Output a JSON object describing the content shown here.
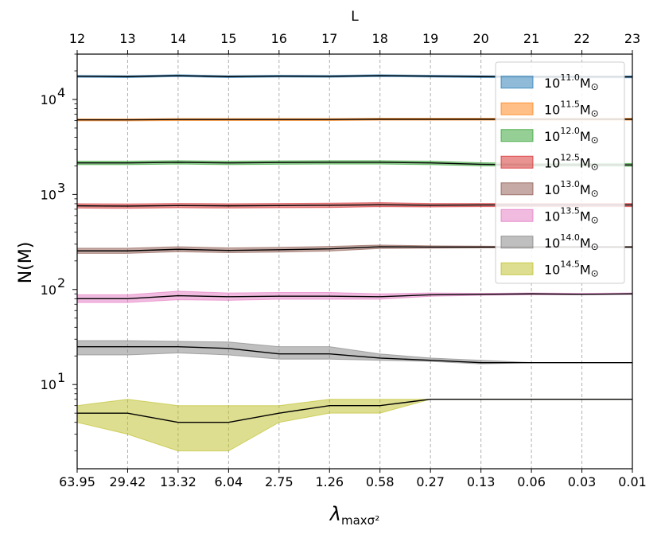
{
  "chart_data": {
    "type": "area",
    "x_bottom": {
      "label_main": "λ",
      "label_sub": "maxσ²",
      "ticks": [
        "63.95",
        "29.42",
        "13.32",
        "6.04",
        "2.75",
        "1.26",
        "0.58",
        "0.27",
        "0.13",
        "0.06",
        "0.03",
        "0.01"
      ]
    },
    "x_top": {
      "label": "L",
      "ticks": [
        "12",
        "13",
        "14",
        "15",
        "16",
        "17",
        "18",
        "19",
        "20",
        "21",
        "22",
        "23"
      ]
    },
    "y": {
      "label": "N(M)",
      "scale": "log",
      "ylim": [
        1.3,
        30000
      ],
      "tick_base": "10",
      "tick_exponents": [
        "1",
        "2",
        "3",
        "4"
      ]
    },
    "grid": {
      "vertical_dashed": true,
      "horizontal": false
    },
    "legend_position": "upper-right",
    "series": [
      {
        "name_base": "10",
        "name_exp": "11.0",
        "name_unit": "M",
        "name_sun": "⊙",
        "color": "#1f77b4",
        "median": [
          17500,
          17400,
          17800,
          17400,
          17600,
          17500,
          17800,
          17600,
          17400,
          17300,
          17300,
          17300
        ],
        "lower": [
          17100,
          17000,
          17400,
          17000,
          17200,
          17100,
          17400,
          17200,
          17000,
          16900,
          16900,
          16900
        ],
        "upper": [
          17900,
          17800,
          18200,
          17800,
          18000,
          17900,
          18200,
          18000,
          17800,
          17700,
          17700,
          17700
        ]
      },
      {
        "name_base": "10",
        "name_exp": "11.5",
        "name_unit": "M",
        "name_sun": "⊙",
        "color": "#ff7f0e",
        "median": [
          6100,
          6100,
          6150,
          6150,
          6150,
          6150,
          6200,
          6200,
          6200,
          6200,
          6200,
          6200
        ],
        "lower": [
          5950,
          5950,
          6000,
          6000,
          6000,
          6000,
          6050,
          6050,
          6050,
          6050,
          6050,
          6050
        ],
        "upper": [
          6250,
          6250,
          6300,
          6300,
          6300,
          6300,
          6350,
          6350,
          6350,
          6350,
          6350,
          6350
        ]
      },
      {
        "name_base": "10",
        "name_exp": "12.0",
        "name_unit": "M",
        "name_sun": "⊙",
        "color": "#2ca02c",
        "median": [
          2150,
          2150,
          2180,
          2150,
          2170,
          2180,
          2180,
          2150,
          2080,
          2050,
          2050,
          2050
        ],
        "lower": [
          2060,
          2060,
          2090,
          2060,
          2080,
          2090,
          2090,
          2060,
          2000,
          1980,
          1980,
          1980
        ],
        "upper": [
          2240,
          2240,
          2270,
          2240,
          2260,
          2270,
          2270,
          2240,
          2160,
          2120,
          2120,
          2120
        ]
      },
      {
        "name_base": "10",
        "name_exp": "12.5",
        "name_unit": "M",
        "name_sun": "⊙",
        "color": "#d62728",
        "median": [
          760,
          755,
          765,
          760,
          765,
          770,
          780,
          770,
          775,
          775,
          775,
          775
        ],
        "lower": [
          720,
          715,
          725,
          720,
          725,
          730,
          745,
          740,
          745,
          745,
          745,
          745
        ],
        "upper": [
          800,
          795,
          805,
          800,
          805,
          810,
          820,
          805,
          805,
          805,
          805,
          805
        ]
      },
      {
        "name_base": "10",
        "name_exp": "13.0",
        "name_unit": "M",
        "name_sun": "⊙",
        "color": "#8c564b",
        "median": [
          255,
          255,
          265,
          258,
          262,
          268,
          282,
          280,
          280,
          280,
          280,
          280
        ],
        "lower": [
          240,
          240,
          250,
          244,
          248,
          254,
          270,
          272,
          274,
          276,
          276,
          276
        ],
        "upper": [
          272,
          272,
          282,
          274,
          278,
          284,
          294,
          288,
          286,
          284,
          284,
          284
        ]
      },
      {
        "name_base": "10",
        "name_exp": "13.5",
        "name_unit": "M",
        "name_sun": "⊙",
        "color": "#e377c2",
        "median": [
          80,
          80,
          86,
          84,
          85,
          85,
          84,
          88,
          89,
          90,
          89,
          90
        ],
        "lower": [
          73,
          73,
          78,
          77,
          79,
          79,
          79,
          85,
          87,
          88,
          88,
          89
        ],
        "upper": [
          88,
          88,
          96,
          92,
          93,
          93,
          90,
          92,
          91,
          92,
          91,
          92
        ]
      },
      {
        "name_base": "10",
        "name_exp": "14.0",
        "name_unit": "M",
        "name_sun": "⊙",
        "color": "#7f7f7f",
        "median": [
          25,
          25,
          25,
          24,
          21,
          21,
          19,
          18,
          17,
          17,
          17,
          17
        ],
        "lower": [
          20.5,
          20.5,
          21.5,
          20.5,
          18.5,
          18.5,
          18,
          17.5,
          16.5,
          17,
          17,
          17
        ],
        "upper": [
          29,
          29,
          28.5,
          28,
          25,
          25,
          21,
          19,
          18,
          17,
          17,
          17
        ]
      },
      {
        "name_base": "10",
        "name_exp": "14.5",
        "name_unit": "M",
        "name_sun": "⊙",
        "color": "#bcbd22",
        "median": [
          5,
          5,
          4,
          4,
          5,
          6,
          6,
          7,
          7,
          7,
          7,
          7
        ],
        "lower": [
          4,
          3,
          2,
          2,
          4,
          5,
          5,
          7,
          7,
          7,
          7,
          7
        ],
        "upper": [
          6,
          7,
          6,
          6,
          6,
          7,
          7,
          7,
          7,
          7,
          7,
          7
        ]
      }
    ]
  }
}
